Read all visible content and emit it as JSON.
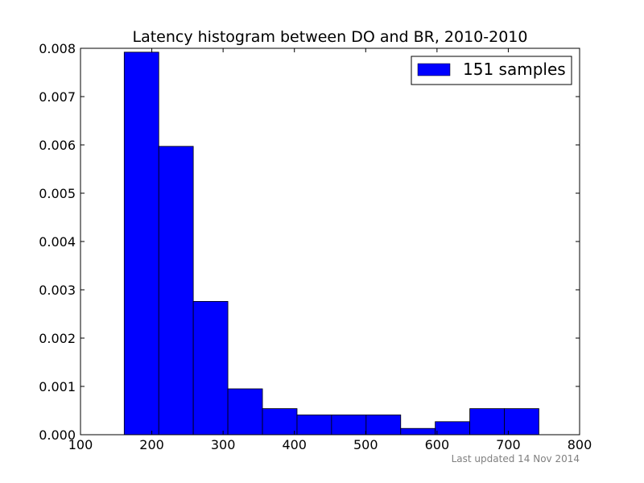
{
  "chart_data": {
    "type": "bar",
    "title": "Latency histogram between DO and BR, 2010-2010",
    "xlabel": "",
    "ylabel": "",
    "xlim": [
      100,
      800
    ],
    "ylim": [
      0,
      0.008
    ],
    "x_ticks": [
      "100",
      "200",
      "300",
      "400",
      "500",
      "600",
      "700",
      "800"
    ],
    "y_ticks": [
      "0.000",
      "0.001",
      "0.002",
      "0.003",
      "0.004",
      "0.005",
      "0.006",
      "0.007",
      "0.008"
    ],
    "grid": false,
    "legend_position": "top-right",
    "bar_color": "#0000ff",
    "bins": [
      {
        "x0": 161.3,
        "x1": 209.8,
        "value": 0.00792
      },
      {
        "x0": 209.8,
        "x1": 258.2,
        "value": 0.00597
      },
      {
        "x0": 258.2,
        "x1": 306.7,
        "value": 0.00276
      },
      {
        "x0": 306.7,
        "x1": 355.2,
        "value": 0.00095
      },
      {
        "x0": 355.2,
        "x1": 403.7,
        "value": 0.00054
      },
      {
        "x0": 403.7,
        "x1": 452.1,
        "value": 0.00041
      },
      {
        "x0": 452.1,
        "x1": 500.6,
        "value": 0.00041
      },
      {
        "x0": 500.6,
        "x1": 549.1,
        "value": 0.00041
      },
      {
        "x0": 549.1,
        "x1": 597.5,
        "value": 0.00013
      },
      {
        "x0": 597.5,
        "x1": 646.0,
        "value": 0.00027
      },
      {
        "x0": 646.0,
        "x1": 694.4,
        "value": 0.00054
      },
      {
        "x0": 694.4,
        "x1": 742.9,
        "value": 0.00054
      }
    ],
    "series": [
      {
        "name": "151 samples",
        "color": "#0000ff"
      }
    ]
  },
  "footer": {
    "note": "Last updated 14 Nov 2014"
  }
}
